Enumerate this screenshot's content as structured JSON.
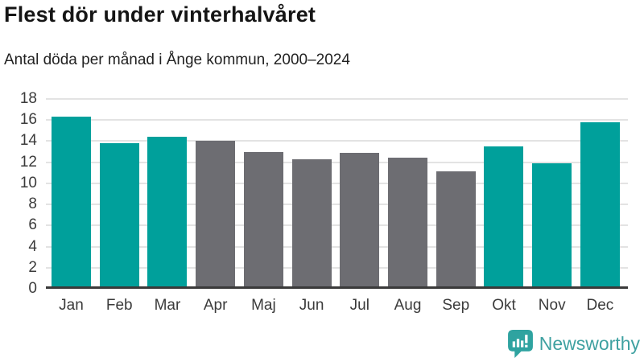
{
  "header": {
    "title": "Flest dör under vinterhalvåret",
    "subtitle": "Antal döda per månad i Ånge kommun, 2000–2024"
  },
  "chart_data": {
    "type": "bar",
    "title": "Flest dör under vinterhalvåret",
    "subtitle": "Antal döda per månad i Ånge kommun, 2000–2024",
    "categories": [
      "Jan",
      "Feb",
      "Mar",
      "Apr",
      "Maj",
      "Jun",
      "Jul",
      "Aug",
      "Sep",
      "Okt",
      "Nov",
      "Dec"
    ],
    "values": [
      16.3,
      13.8,
      14.4,
      14.0,
      13.0,
      12.3,
      12.9,
      12.4,
      11.1,
      13.5,
      11.9,
      15.8
    ],
    "bar_roles": [
      "highlight",
      "highlight",
      "highlight",
      "muted",
      "muted",
      "muted",
      "muted",
      "muted",
      "muted",
      "highlight",
      "highlight",
      "highlight"
    ],
    "xlabel": "",
    "ylabel": "",
    "ylim": [
      0,
      18
    ],
    "yticks": [
      0,
      2,
      4,
      6,
      8,
      10,
      12,
      14,
      16,
      18
    ],
    "grid": true,
    "legend": false,
    "colors": {
      "highlight": "#00a09b",
      "muted": "#6d6d72",
      "gridline": "#e3e3e3",
      "axis_line": "#3a3a3a",
      "tick_text": "#3b3b3b"
    }
  },
  "branding": {
    "logo_text": "Newsworthy",
    "logo_icon": "bar-chart-speech-bubble-icon",
    "brand_color": "#3fa1a1",
    "icon_color": "#2fa3a0"
  }
}
